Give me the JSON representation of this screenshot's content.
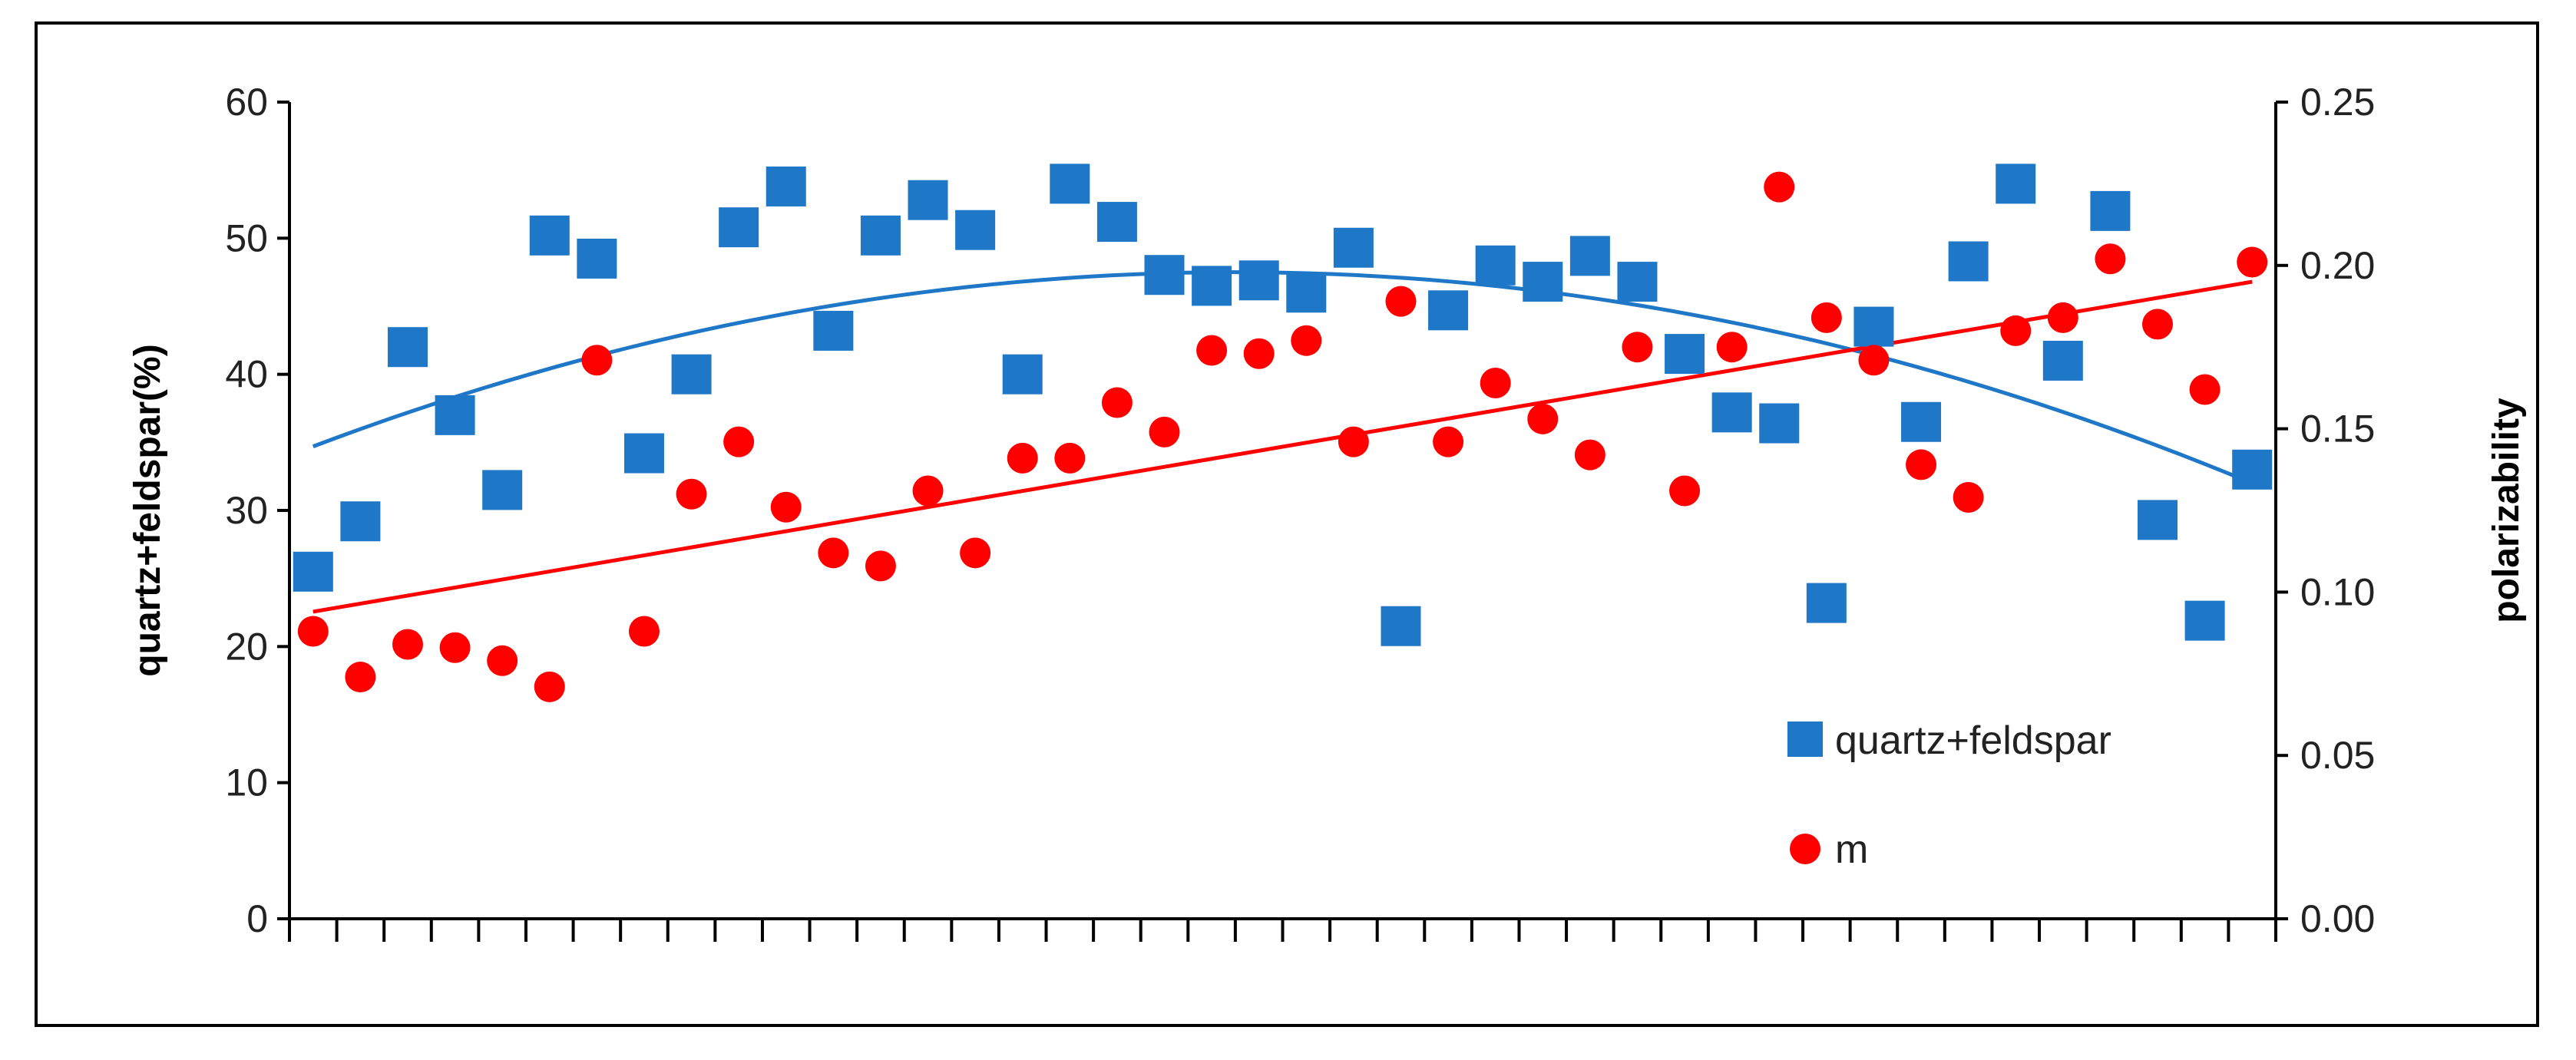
{
  "chart_data": {
    "type": "scatter",
    "title": "",
    "xlabel": "",
    "ylabel": "quartz+feldspar(%)",
    "y2label": "polarizability",
    "ylim": [
      0,
      60
    ],
    "y2lim": [
      0,
      0.25
    ],
    "yticks": [
      "0",
      "10",
      "20",
      "30",
      "40",
      "50",
      "60"
    ],
    "y2ticks": [
      "0.00",
      "0.05",
      "0.10",
      "0.15",
      "0.20",
      "0.25"
    ],
    "x_tick_count": 42,
    "grid": false,
    "legend_position": "bottom-right",
    "series": [
      {
        "name": "quartz+feldspar",
        "axis": "left",
        "marker": "square",
        "color": "#1F77C8",
        "points": [
          {
            "x": 1,
            "y": 25.5
          },
          {
            "x": 2,
            "y": 29.2
          },
          {
            "x": 3,
            "y": 42.0
          },
          {
            "x": 4,
            "y": 37.0
          },
          {
            "x": 5,
            "y": 31.5
          },
          {
            "x": 6,
            "y": 50.2
          },
          {
            "x": 7,
            "y": 48.5
          },
          {
            "x": 8,
            "y": 34.2
          },
          {
            "x": 9,
            "y": 40.0
          },
          {
            "x": 10,
            "y": 50.8
          },
          {
            "x": 11,
            "y": 53.8
          },
          {
            "x": 12,
            "y": 43.2
          },
          {
            "x": 13,
            "y": 50.2
          },
          {
            "x": 14,
            "y": 52.8
          },
          {
            "x": 15,
            "y": 50.6
          },
          {
            "x": 16,
            "y": 40.0
          },
          {
            "x": 17,
            "y": 54.0
          },
          {
            "x": 18,
            "y": 51.2
          },
          {
            "x": 19,
            "y": 47.3
          },
          {
            "x": 20,
            "y": 46.5
          },
          {
            "x": 21,
            "y": 46.9
          },
          {
            "x": 22,
            "y": 46.0
          },
          {
            "x": 23,
            "y": 49.3
          },
          {
            "x": 24,
            "y": 21.5
          },
          {
            "x": 25,
            "y": 44.7
          },
          {
            "x": 26,
            "y": 48.0
          },
          {
            "x": 27,
            "y": 46.8
          },
          {
            "x": 28,
            "y": 48.7
          },
          {
            "x": 29,
            "y": 46.8
          },
          {
            "x": 30,
            "y": 41.5
          },
          {
            "x": 31,
            "y": 37.2
          },
          {
            "x": 32,
            "y": 36.4
          },
          {
            "x": 33,
            "y": 23.2
          },
          {
            "x": 34,
            "y": 43.5
          },
          {
            "x": 35,
            "y": 36.5
          },
          {
            "x": 36,
            "y": 48.3
          },
          {
            "x": 37,
            "y": 54.0
          },
          {
            "x": 38,
            "y": 41.0
          },
          {
            "x": 39,
            "y": 52.0
          },
          {
            "x": 40,
            "y": 29.3
          },
          {
            "x": 41,
            "y": 21.9
          },
          {
            "x": 42,
            "y": 33.0
          }
        ],
        "trendline": {
          "type": "polynomial",
          "color": "#1F77C8",
          "start": 34.7,
          "peak": 47.5,
          "end": 32.0
        }
      },
      {
        "name": "m",
        "axis": "right",
        "marker": "circle",
        "color": "#FF0000",
        "points": [
          {
            "x": 1,
            "y": 0.088
          },
          {
            "x": 2,
            "y": 0.074
          },
          {
            "x": 3,
            "y": 0.084
          },
          {
            "x": 4,
            "y": 0.083
          },
          {
            "x": 5,
            "y": 0.079
          },
          {
            "x": 6,
            "y": 0.071
          },
          {
            "x": 7,
            "y": 0.171
          },
          {
            "x": 8,
            "y": 0.088
          },
          {
            "x": 9,
            "y": 0.13
          },
          {
            "x": 10,
            "y": 0.146
          },
          {
            "x": 11,
            "y": 0.126
          },
          {
            "x": 12,
            "y": 0.112
          },
          {
            "x": 13,
            "y": 0.108
          },
          {
            "x": 14,
            "y": 0.131
          },
          {
            "x": 15,
            "y": 0.112
          },
          {
            "x": 16,
            "y": 0.141
          },
          {
            "x": 17,
            "y": 0.141
          },
          {
            "x": 18,
            "y": 0.158
          },
          {
            "x": 19,
            "y": 0.149
          },
          {
            "x": 20,
            "y": 0.174
          },
          {
            "x": 21,
            "y": 0.173
          },
          {
            "x": 22,
            "y": 0.177
          },
          {
            "x": 23,
            "y": 0.146
          },
          {
            "x": 24,
            "y": 0.189
          },
          {
            "x": 25,
            "y": 0.146
          },
          {
            "x": 26,
            "y": 0.164
          },
          {
            "x": 27,
            "y": 0.153
          },
          {
            "x": 28,
            "y": 0.142
          },
          {
            "x": 29,
            "y": 0.175
          },
          {
            "x": 30,
            "y": 0.131
          },
          {
            "x": 31,
            "y": 0.175
          },
          {
            "x": 32,
            "y": 0.224
          },
          {
            "x": 33,
            "y": 0.184
          },
          {
            "x": 34,
            "y": 0.171
          },
          {
            "x": 35,
            "y": 0.139
          },
          {
            "x": 36,
            "y": 0.129
          },
          {
            "x": 37,
            "y": 0.18
          },
          {
            "x": 38,
            "y": 0.184
          },
          {
            "x": 39,
            "y": 0.202
          },
          {
            "x": 40,
            "y": 0.182
          },
          {
            "x": 41,
            "y": 0.162
          },
          {
            "x": 42,
            "y": 0.201
          }
        ],
        "trendline": {
          "type": "linear",
          "color": "#FF0000",
          "start": 0.094,
          "end": 0.195
        }
      }
    ]
  }
}
